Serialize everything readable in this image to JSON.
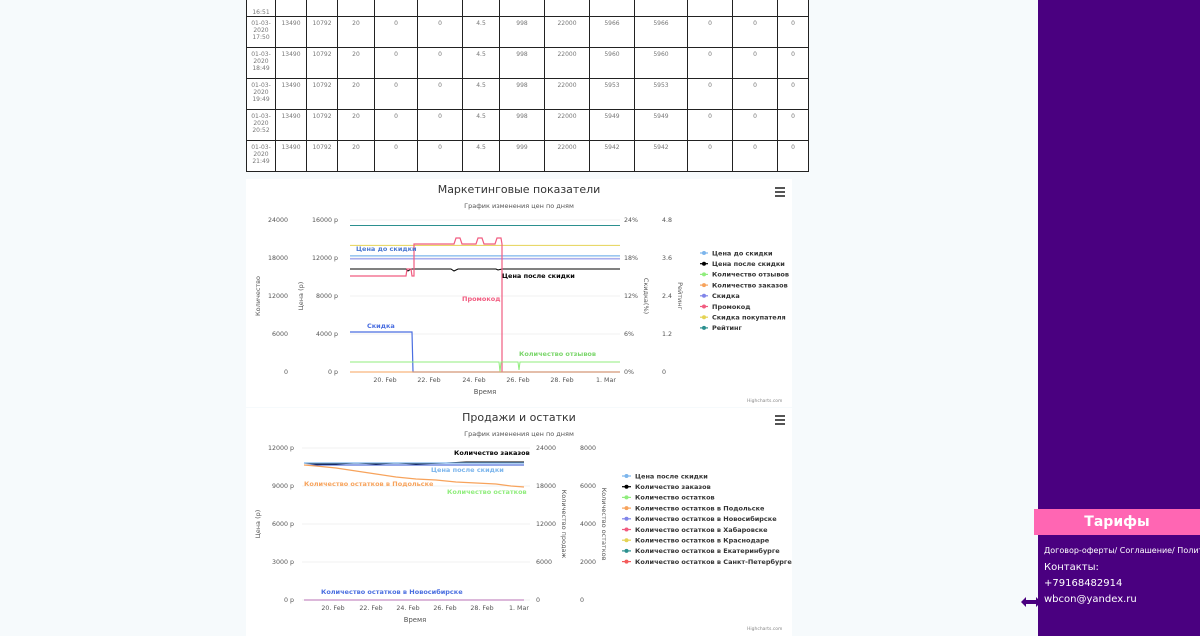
{
  "table": {
    "top_cell": "16:51",
    "rows": [
      {
        "date": [
          "01-03-",
          "2020",
          "17:50"
        ],
        "cells": [
          "13490",
          "10792",
          "20",
          "0",
          "0",
          "4.5",
          "998",
          "22000",
          "5966",
          "5966",
          "0",
          "0",
          "0"
        ]
      },
      {
        "date": [
          "01-03-",
          "2020",
          "18:49"
        ],
        "cells": [
          "13490",
          "10792",
          "20",
          "0",
          "0",
          "4.5",
          "998",
          "22000",
          "5960",
          "5960",
          "0",
          "0",
          "0"
        ]
      },
      {
        "date": [
          "01-03-",
          "2020",
          "19:49"
        ],
        "cells": [
          "13490",
          "10792",
          "20",
          "0",
          "0",
          "4.5",
          "998",
          "22000",
          "5953",
          "5953",
          "0",
          "0",
          "0"
        ]
      },
      {
        "date": [
          "01-03-",
          "2020",
          "20:52"
        ],
        "cells": [
          "13490",
          "10792",
          "20",
          "0",
          "0",
          "4.5",
          "998",
          "22000",
          "5949",
          "5949",
          "0",
          "0",
          "0"
        ]
      },
      {
        "date": [
          "01-03-",
          "2020",
          "21:49"
        ],
        "cells": [
          "13490",
          "10792",
          "20",
          "0",
          "0",
          "4.5",
          "999",
          "22000",
          "5942",
          "5942",
          "0",
          "0",
          "0"
        ]
      }
    ]
  },
  "chart_data": [
    {
      "type": "line",
      "title": "Маркетинговые показатели",
      "subtitle": "График изменения цен по дням",
      "xlabel": "Время",
      "x_ticks": [
        "20. Feb",
        "22. Feb",
        "24. Feb",
        "26. Feb",
        "28. Feb",
        "1. Mar"
      ],
      "y_axes": [
        {
          "label": "Количество",
          "ticks": [
            "0",
            "6000",
            "12000",
            "18000",
            "24000"
          ],
          "range": [
            0,
            24000
          ]
        },
        {
          "label": "Цена (р)",
          "ticks": [
            "0 р",
            "4000 р",
            "8000 р",
            "12000 р",
            "16000 р"
          ],
          "range": [
            0,
            16000
          ]
        },
        {
          "label": "Скидка(%)",
          "ticks": [
            "0%",
            "6%",
            "12%",
            "18%",
            "24%"
          ],
          "range": [
            0,
            24
          ]
        },
        {
          "label": "Рейтинг",
          "ticks": [
            "0",
            "1.2",
            "2.4",
            "3.6",
            "4.8"
          ],
          "range": [
            0,
            4.8
          ]
        }
      ],
      "x": [
        "19. Feb",
        "20. Feb",
        "21. Feb",
        "22. Feb",
        "23. Feb",
        "24. Feb",
        "25. Feb",
        "26. Feb",
        "27. Feb",
        "28. Feb",
        "29. Feb",
        "1. Mar"
      ],
      "series": [
        {
          "name": "Цена до скидки",
          "color": "#7cb5ec",
          "values": [
            13490,
            13490,
            13490,
            13490,
            13490,
            13490,
            13490,
            13490,
            13490,
            13490,
            13490,
            13490
          ]
        },
        {
          "name": "Цена после скидки",
          "color": "#000000",
          "values": [
            10792,
            10792,
            10792,
            10792,
            10792,
            10792,
            10792,
            10792,
            10792,
            10792,
            10792,
            10792
          ]
        },
        {
          "name": "Количество отзывов",
          "color": "#90ed7d",
          "values": [
            20,
            20,
            20,
            20,
            20,
            20,
            20,
            20,
            20,
            20,
            20,
            20
          ]
        },
        {
          "name": "Количество заказов",
          "color": "#f7a35c",
          "values": [
            0,
            0,
            0,
            0,
            0,
            0,
            0,
            0,
            0,
            0,
            0,
            0
          ]
        },
        {
          "name": "Скидка",
          "color": "#8085e9",
          "values": [
            6,
            6,
            6,
            0,
            0,
            0,
            0,
            0,
            0,
            0,
            0,
            0
          ]
        },
        {
          "name": "Промокод",
          "color": "#f15c80",
          "values": [
            10,
            10,
            10,
            13,
            13,
            13.5,
            13.5,
            0,
            0,
            0,
            0,
            0
          ]
        },
        {
          "name": "Скидка покупателя",
          "color": "#e4d354",
          "values": [
            20,
            20,
            20,
            20,
            20,
            20,
            20,
            20,
            20,
            20,
            20,
            20
          ]
        },
        {
          "name": "Рейтинг",
          "color": "#2b908f",
          "values": [
            4.5,
            4.5,
            4.5,
            4.5,
            4.5,
            4.5,
            4.5,
            4.5,
            4.5,
            4.5,
            4.5,
            4.5
          ]
        }
      ],
      "annotations": [
        "Цена до скидки",
        "Цена после скидки",
        "Промокод",
        "Скидка",
        "Количество отзывов"
      ],
      "legend": "right",
      "credits": "Highcharts.com"
    },
    {
      "type": "line",
      "title": "Продажи и остатки",
      "subtitle": "График изменения цен по дням",
      "xlabel": "Время",
      "x_ticks": [
        "20. Feb",
        "22. Feb",
        "24. Feb",
        "26. Feb",
        "28. Feb",
        "1. Mar"
      ],
      "y_axes": [
        {
          "label": "Цена (р)",
          "ticks": [
            "0 р",
            "3000 р",
            "6000 р",
            "9000 р",
            "12000 р"
          ],
          "range": [
            0,
            12000
          ]
        },
        {
          "label": "Количество продаж",
          "ticks": [
            "0",
            "6000",
            "12000",
            "18000",
            "24000"
          ],
          "range": [
            0,
            24000
          ]
        },
        {
          "label": "Количество остатков",
          "ticks": [
            "0",
            "2000",
            "4000",
            "6000",
            "8000"
          ],
          "range": [
            0,
            8000
          ]
        }
      ],
      "series": [
        {
          "name": "Цена после скидки",
          "color": "#7cb5ec",
          "values": [
            10792,
            10792,
            10792,
            10792,
            10792,
            10792,
            10792,
            10792,
            10792,
            10792
          ]
        },
        {
          "name": "Количество заказов",
          "color": "#000000",
          "values": [
            21500,
            21500,
            21700,
            21700,
            21800,
            21900,
            22000,
            22000,
            22000,
            22000
          ]
        },
        {
          "name": "Количество остатков",
          "color": "#90ed7d",
          "values": [
            7100,
            7000,
            6850,
            6700,
            6550,
            6400,
            6250,
            6150,
            6050,
            5950
          ]
        },
        {
          "name": "Количество остатков в Подольске",
          "color": "#f7a35c",
          "values": [
            7100,
            7000,
            6850,
            6700,
            6550,
            6400,
            6250,
            6150,
            6050,
            5950
          ]
        },
        {
          "name": "Количество остатков в Новосибирске",
          "color": "#8085e9",
          "values": [
            0,
            0,
            0,
            0,
            0,
            0,
            0,
            0,
            0,
            0
          ]
        },
        {
          "name": "Количество остатков в Хабаровске",
          "color": "#f15c80",
          "values": [
            0,
            0,
            0,
            0,
            0,
            0,
            0,
            0,
            0,
            0
          ]
        },
        {
          "name": "Количество остатков в Краснодаре",
          "color": "#e4d354",
          "values": [
            0,
            0,
            0,
            0,
            0,
            0,
            0,
            0,
            0,
            0
          ]
        },
        {
          "name": "Количество остатков в Екатеринбурге",
          "color": "#2b908f",
          "values": [
            0,
            0,
            0,
            0,
            0,
            0,
            0,
            0,
            0,
            0
          ]
        },
        {
          "name": "Количество остатков в Санкт-Петербурге",
          "color": "#f45b5b",
          "values": [
            0,
            0,
            0,
            0,
            0,
            0,
            0,
            0,
            0,
            0
          ]
        }
      ],
      "annotations": [
        "Количество заказов",
        "Цена после скидки",
        "Количество остатков в Подольске",
        "Количество остатков",
        "Количество остатков в Новосибирске"
      ],
      "legend": "right",
      "credits": "Highcharts.com"
    }
  ],
  "sidebar": {
    "tariff_button": "Тарифы",
    "links": "Договор-оферты/ Соглашение/ Политика/",
    "contacts_label": "Контакты:",
    "phone": "+79168482914",
    "email": "wbcon@yandex.ru"
  }
}
